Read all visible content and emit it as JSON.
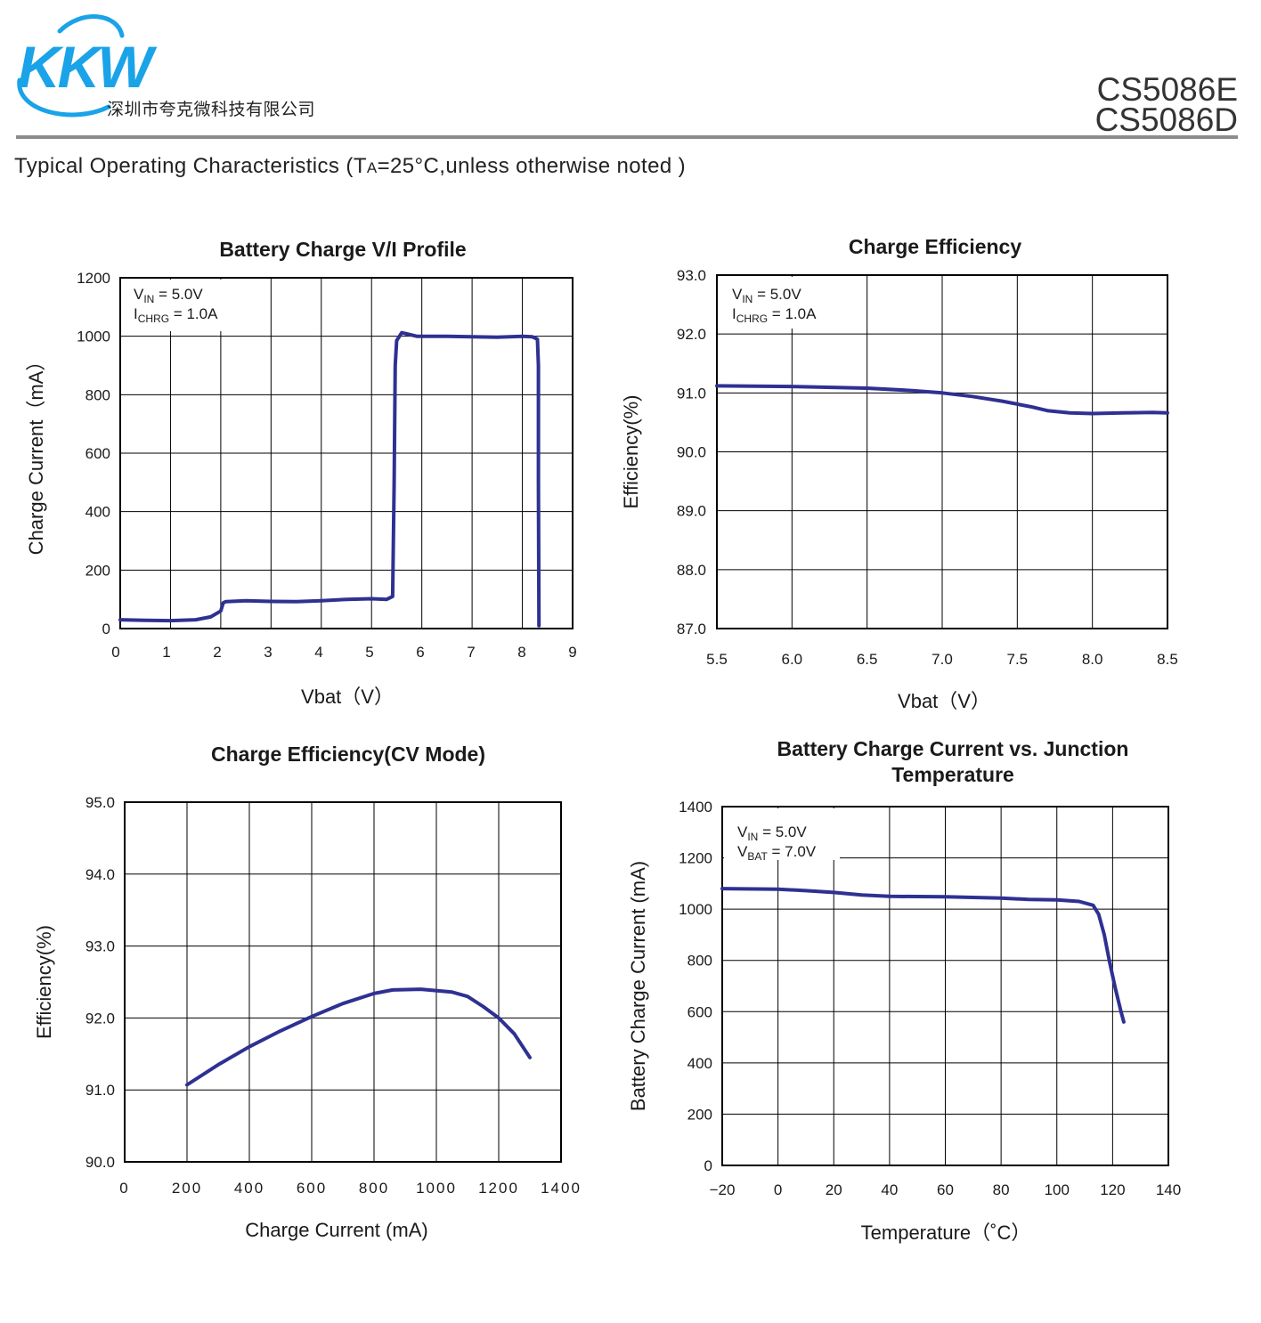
{
  "header": {
    "logo_text": "KKW",
    "company_name": "深圳市夸克微科技有限公司",
    "part_numbers": [
      "CS5086E",
      "CS5086D"
    ]
  },
  "section_title": "Typical Operating Characteristics",
  "section_condition": {
    "prefix": "(T",
    "sub": "A",
    "suffix": "=25°C,unless otherwise noted )"
  },
  "colors": {
    "curve": "#2e3192",
    "rule": "#8c8c8c",
    "logo": "#1aa3e8"
  },
  "chart_data": [
    {
      "id": "vi",
      "type": "line",
      "title": "Battery Charge V/I Profile",
      "xlabel": "Vbat（V）",
      "ylabel": "Charge Current（mA）",
      "xticks": [
        0,
        1,
        2,
        3,
        4,
        5,
        6,
        7,
        8,
        9
      ],
      "yticks": [
        0,
        200,
        400,
        600,
        800,
        1000,
        1200
      ],
      "xtick_labels": [
        "0",
        "1",
        "2",
        "3",
        "4",
        "5",
        "6",
        "7",
        "8",
        "9"
      ],
      "ytick_labels": [
        "0",
        "200",
        "400",
        "600",
        "800",
        "1000",
        "1200"
      ],
      "xlim": [
        0,
        9
      ],
      "ylim": [
        0,
        1200
      ],
      "grid": true,
      "annotations": [
        {
          "main": "V",
          "sub": "IN",
          "rest": " = 5.0V"
        },
        {
          "main": "I",
          "sub": "CHRG",
          "rest": " = 1.0A"
        }
      ],
      "series": [
        {
          "values": [
            [
              0,
              30
            ],
            [
              0.5,
              28
            ],
            [
              1.0,
              27
            ],
            [
              1.5,
              30
            ],
            [
              1.8,
              40
            ],
            [
              2.0,
              60
            ],
            [
              2.05,
              88
            ],
            [
              2.1,
              92
            ],
            [
              2.5,
              95
            ],
            [
              3.0,
              93
            ],
            [
              3.5,
              92
            ],
            [
              4.0,
              95
            ],
            [
              4.5,
              100
            ],
            [
              5.0,
              102
            ],
            [
              5.3,
              100
            ],
            [
              5.42,
              110
            ],
            [
              5.45,
              500
            ],
            [
              5.47,
              900
            ],
            [
              5.5,
              985
            ],
            [
              5.6,
              1012
            ],
            [
              5.7,
              1008
            ],
            [
              5.9,
              1000
            ],
            [
              6.5,
              1000
            ],
            [
              7.0,
              998
            ],
            [
              7.5,
              997
            ],
            [
              8.0,
              1000
            ],
            [
              8.2,
              998
            ],
            [
              8.3,
              990
            ],
            [
              8.32,
              900
            ],
            [
              8.32,
              500
            ],
            [
              8.33,
              10
            ]
          ]
        }
      ]
    },
    {
      "id": "eff",
      "type": "line",
      "title": "Charge Efficiency",
      "xlabel": "Vbat（V）",
      "ylabel": "Efficiency(%)",
      "xticks": [
        5.5,
        6.0,
        6.5,
        7.0,
        7.5,
        8.0,
        8.5
      ],
      "yticks": [
        87.0,
        88.0,
        89.0,
        90.0,
        91.0,
        92.0,
        93.0
      ],
      "xtick_labels": [
        "5.5",
        "6.0",
        "6.5",
        "7.0",
        "7.5",
        "8.0",
        "8.5"
      ],
      "ytick_labels": [
        "87.0",
        "88.0",
        "89.0",
        "90.0",
        "91.0",
        "92.0",
        "93.0"
      ],
      "xlim": [
        5.5,
        8.5
      ],
      "ylim": [
        87.0,
        93.0
      ],
      "grid": true,
      "annotations": [
        {
          "main": "V",
          "sub": "IN",
          "rest": " = 5.0V"
        },
        {
          "main": "I",
          "sub": "CHRG",
          "rest": " = 1.0A"
        }
      ],
      "series": [
        {
          "values": [
            [
              5.5,
              91.12
            ],
            [
              6.0,
              91.11
            ],
            [
              6.5,
              91.08
            ],
            [
              6.8,
              91.04
            ],
            [
              7.0,
              91.0
            ],
            [
              7.2,
              90.94
            ],
            [
              7.4,
              90.86
            ],
            [
              7.6,
              90.76
            ],
            [
              7.7,
              90.7
            ],
            [
              7.85,
              90.66
            ],
            [
              8.0,
              90.65
            ],
            [
              8.2,
              90.66
            ],
            [
              8.4,
              90.67
            ],
            [
              8.5,
              90.66
            ]
          ]
        }
      ]
    },
    {
      "id": "cv",
      "type": "line",
      "title": "Charge Efficiency(CV Mode)",
      "xlabel": "Charge Current (mA)",
      "ylabel": "Efficiency(%)",
      "xticks": [
        0,
        200,
        400,
        600,
        800,
        1000,
        1200,
        1400
      ],
      "yticks": [
        90.0,
        91.0,
        92.0,
        93.0,
        94.0,
        95.0
      ],
      "xtick_labels": [
        "0",
        "200",
        "400",
        "600",
        "800",
        "1000",
        "1200",
        "1400"
      ],
      "ytick_labels": [
        "90.0",
        "91.0",
        "92.0",
        "93.0",
        "94.0",
        "95.0"
      ],
      "xlim": [
        0,
        1400
      ],
      "ylim": [
        90.0,
        95.0
      ],
      "grid": true,
      "annotations": [],
      "series": [
        {
          "values": [
            [
              200,
              91.07
            ],
            [
              300,
              91.35
            ],
            [
              400,
              91.6
            ],
            [
              500,
              91.82
            ],
            [
              600,
              92.02
            ],
            [
              700,
              92.2
            ],
            [
              800,
              92.34
            ],
            [
              860,
              92.39
            ],
            [
              950,
              92.4
            ],
            [
              1050,
              92.36
            ],
            [
              1100,
              92.3
            ],
            [
              1150,
              92.16
            ],
            [
              1200,
              92.0
            ],
            [
              1250,
              91.78
            ],
            [
              1300,
              91.45
            ]
          ]
        }
      ]
    },
    {
      "id": "temp",
      "type": "line",
      "title": "Battery Charge Current vs. Junction Temperature",
      "title_lines": [
        "Battery Charge Current vs. Junction",
        "Temperature"
      ],
      "xlabel": "Temperature（˚C）",
      "ylabel": "Battery Charge Current (mA)",
      "xticks": [
        -20,
        0,
        20,
        40,
        60,
        80,
        100,
        120,
        140
      ],
      "yticks": [
        0,
        200,
        400,
        600,
        800,
        1000,
        1200,
        1400
      ],
      "xtick_labels": [
        "−20",
        "0",
        "20",
        "40",
        "60",
        "80",
        "100",
        "120",
        "140"
      ],
      "ytick_labels": [
        "0",
        "200",
        "400",
        "600",
        "800",
        "1000",
        "1200",
        "1400"
      ],
      "xlim": [
        -20,
        140
      ],
      "ylim": [
        0,
        1400
      ],
      "grid": true,
      "annotations": [
        {
          "main": "V",
          "sub": "IN",
          "rest": " = 5.0V"
        },
        {
          "main": "V",
          "sub": "BAT",
          "rest": " = 7.0V"
        }
      ],
      "series": [
        {
          "values": [
            [
              -20,
              1080
            ],
            [
              0,
              1078
            ],
            [
              10,
              1072
            ],
            [
              20,
              1065
            ],
            [
              30,
              1055
            ],
            [
              40,
              1050
            ],
            [
              60,
              1048
            ],
            [
              80,
              1043
            ],
            [
              90,
              1038
            ],
            [
              100,
              1036
            ],
            [
              108,
              1030
            ],
            [
              113,
              1015
            ],
            [
              115,
              980
            ],
            [
              117,
              900
            ],
            [
              119,
              790
            ],
            [
              121,
              690
            ],
            [
              123,
              600
            ],
            [
              124,
              560
            ]
          ]
        }
      ]
    }
  ]
}
